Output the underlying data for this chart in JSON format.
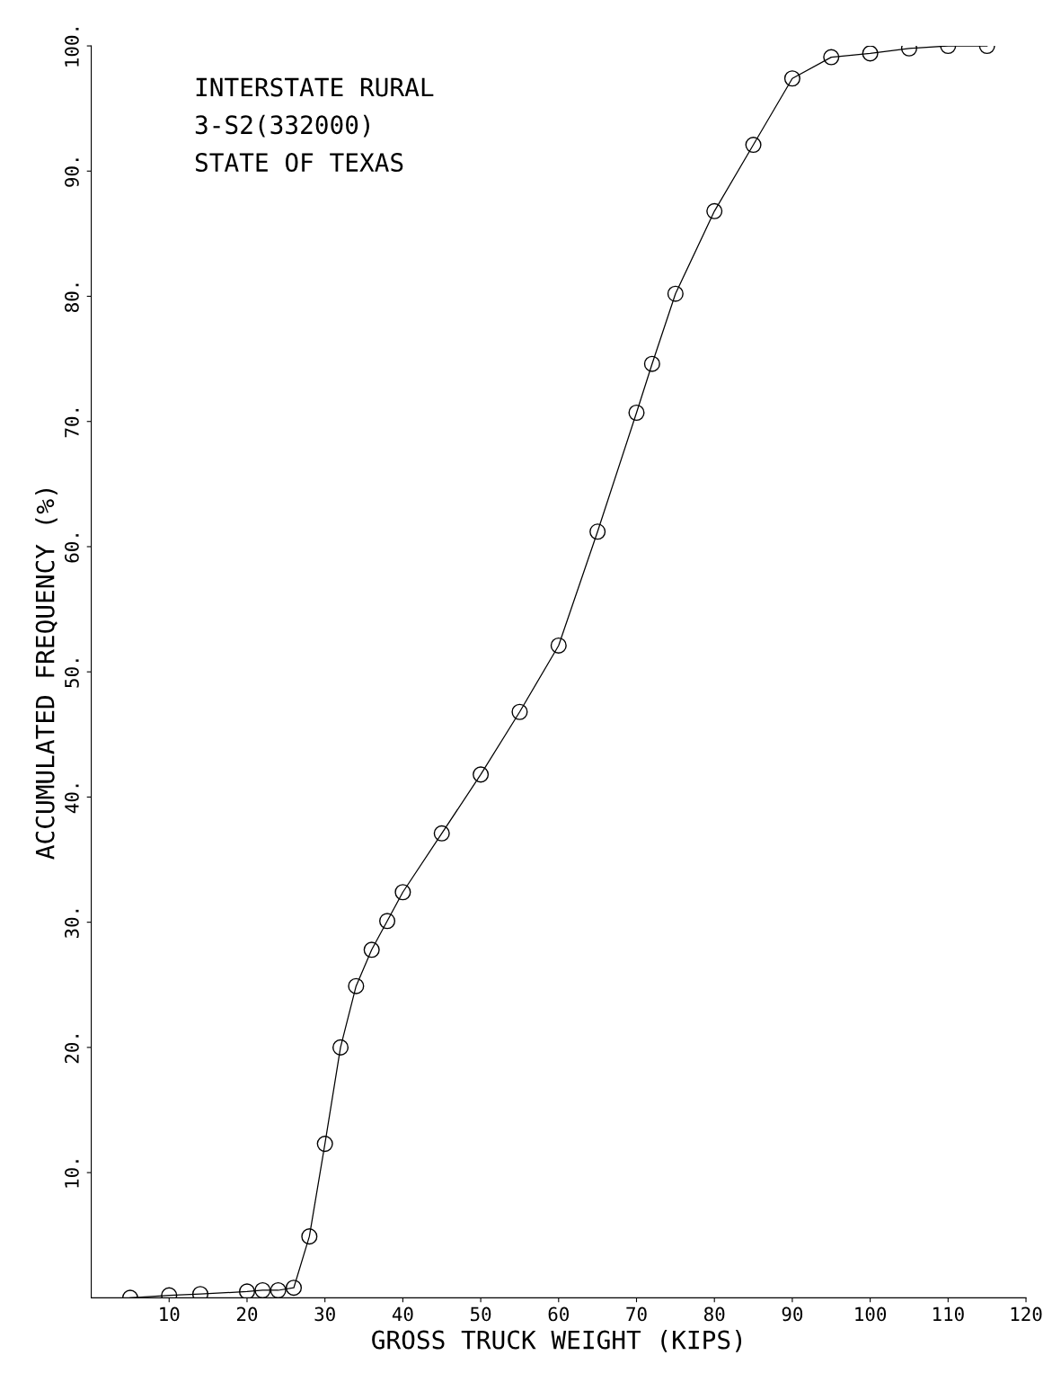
{
  "chart_data": {
    "type": "line",
    "xlabel": "GROSS TRUCK WEIGHT (KIPS)",
    "ylabel": "ACCUMULATED FREQUENCY (%)",
    "annotations": [
      "INTERSTATE RURAL",
      "3-S2(332000)",
      "STATE OF TEXAS"
    ],
    "x": [
      5,
      10,
      14,
      20,
      22,
      24,
      26,
      28,
      30,
      32,
      34,
      36,
      38,
      40,
      45,
      50,
      55,
      60,
      65,
      70,
      72,
      75,
      80,
      85,
      90,
      95,
      100,
      105,
      110,
      115
    ],
    "series": [
      {
        "color": "#000000",
        "values": [
          0,
          0.2,
          0.3,
          0.5,
          0.6,
          0.6,
          0.8,
          4.9,
          12.3,
          20,
          24.9,
          27.8,
          30.1,
          32.4,
          37.1,
          41.8,
          46.8,
          52.1,
          61.2,
          70.7,
          74.6,
          80.2,
          86.8,
          92.1,
          97.4,
          99.1,
          99.4,
          99.8,
          100,
          100
        ]
      }
    ],
    "xlim": [
      0,
      120
    ],
    "ylim": [
      0,
      100
    ],
    "xticks": [
      10,
      20,
      30,
      40,
      50,
      60,
      70,
      80,
      90,
      100,
      110,
      120
    ],
    "yticks": [
      {
        "value": 10,
        "label": "10."
      },
      {
        "value": 20,
        "label": "20."
      },
      {
        "value": 30,
        "label": "30."
      },
      {
        "value": 40,
        "label": "40."
      },
      {
        "value": 50,
        "label": "50."
      },
      {
        "value": 60,
        "label": "60."
      },
      {
        "value": 70,
        "label": "70."
      },
      {
        "value": 80,
        "label": "80."
      },
      {
        "value": 90,
        "label": "90."
      },
      {
        "value": 100,
        "label": "100."
      }
    ],
    "grid": false,
    "legend": false,
    "marker": "circle",
    "line_style": "solid"
  }
}
